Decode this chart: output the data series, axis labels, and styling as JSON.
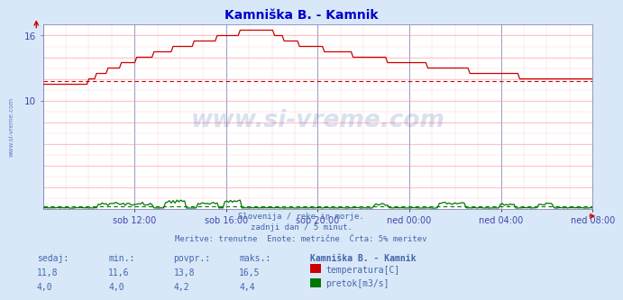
{
  "title": "Kamniška B. - Kamnik",
  "title_color": "#0000cc",
  "bg_color": "#d8e8f8",
  "plot_bg_color": "#ffffff",
  "grid_color_major": "#ffaaaa",
  "grid_color_minor": "#ffcccc",
  "axis_color": "#8888bb",
  "tick_color": "#4444aa",
  "watermark_text": "www.si-vreme.com",
  "watermark_color": "#3355aa",
  "y_min": 0,
  "y_max": 17,
  "y_tick_vals": [
    10,
    16
  ],
  "x_tick_labels": [
    "sob 12:00",
    "sob 16:00",
    "sob 20:00",
    "ned 00:00",
    "ned 04:00",
    "ned 08:00"
  ],
  "subtitle_lines": [
    "Slovenija / reke in morje.",
    "zadnji dan / 5 minut.",
    "Meritve: trenutne  Enote: metrične  Črta: 5% meritev"
  ],
  "subtitle_color": "#4466aa",
  "table_header": [
    "sedaj:",
    "min.:",
    "povpr.:",
    "maks.:",
    "Kamniška B. - Kamnik"
  ],
  "table_row1": [
    "11,8",
    "11,6",
    "13,8",
    "16,5"
  ],
  "table_row2": [
    "4,0",
    "4,0",
    "4,2",
    "4,4"
  ],
  "legend_temp": "temperatura[C]",
  "legend_flow": "pretok[m3/s]",
  "temp_color": "#cc0000",
  "flow_color": "#007700",
  "avg_temp": 11.8,
  "avg_flow": 0.25,
  "n_points": 288
}
